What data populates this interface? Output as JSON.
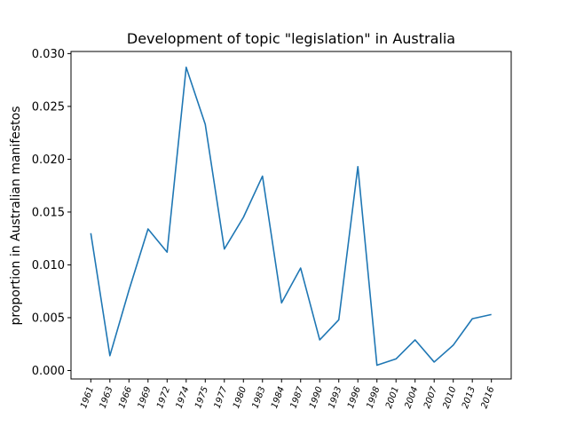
{
  "chart_data": {
    "type": "line",
    "title": "Development of topic \"legislation\" in Australia",
    "xlabel": "",
    "ylabel": "proportion in Australian manifestos",
    "categories": [
      "1961",
      "1963",
      "1966",
      "1969",
      "1972",
      "1974",
      "1975",
      "1977",
      "1980",
      "1983",
      "1984",
      "1987",
      "1990",
      "1993",
      "1996",
      "1998",
      "2001",
      "2004",
      "2007",
      "2010",
      "2013",
      "2016"
    ],
    "series": [
      {
        "values": [
          0.013,
          0.0014,
          0.0076,
          0.0134,
          0.0112,
          0.0287,
          0.0233,
          0.0115,
          0.0145,
          0.0184,
          0.0064,
          0.0097,
          0.0029,
          0.0048,
          0.0193,
          0.0005,
          0.0011,
          0.0029,
          0.0008,
          0.0024,
          0.0049,
          0.0053
        ],
        "color": "#1f77b4"
      }
    ],
    "ylim": [
      -0.0008,
      0.0302
    ],
    "yticks": [
      "0.000",
      "0.005",
      "0.010",
      "0.015",
      "0.020",
      "0.025",
      "0.030"
    ],
    "grid": false
  }
}
